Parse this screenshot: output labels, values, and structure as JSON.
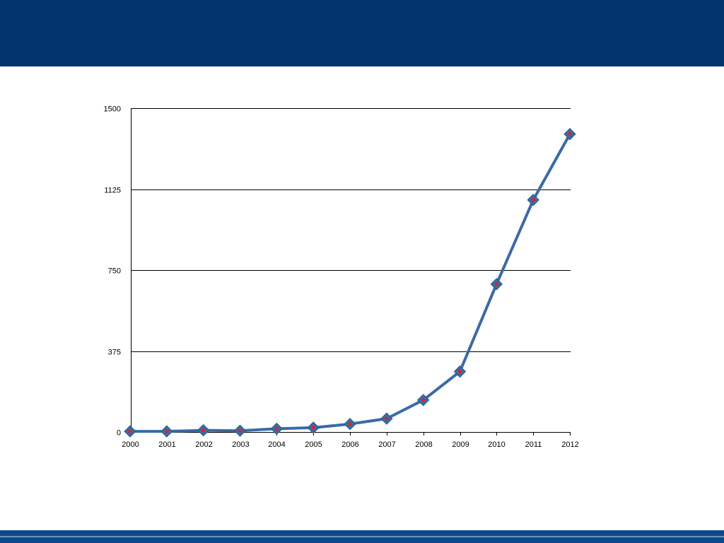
{
  "colors": {
    "header": "#02356f",
    "footer": "#0d4a8a",
    "line": "#3a6ba5",
    "marker_fill": "#3a6ba5",
    "marker_dot": "#e0231c",
    "grid": "#000000"
  },
  "chart_data": {
    "type": "line",
    "title": "",
    "xlabel": "",
    "ylabel": "",
    "categories": [
      "2000",
      "2001",
      "2002",
      "2003",
      "2004",
      "2005",
      "2006",
      "2007",
      "2008",
      "2009",
      "2010",
      "2011",
      "2012"
    ],
    "series": [
      {
        "values": [
          3,
          3,
          8,
          6,
          15,
          20,
          37,
          62,
          148,
          280,
          685,
          1075,
          1380
        ]
      }
    ],
    "ylim": [
      0,
      1500
    ],
    "yticks": [
      "0",
      "375",
      "750",
      "1125",
      "1500"
    ],
    "grid": "horizontal",
    "marker": "diamond",
    "legend": "none"
  }
}
